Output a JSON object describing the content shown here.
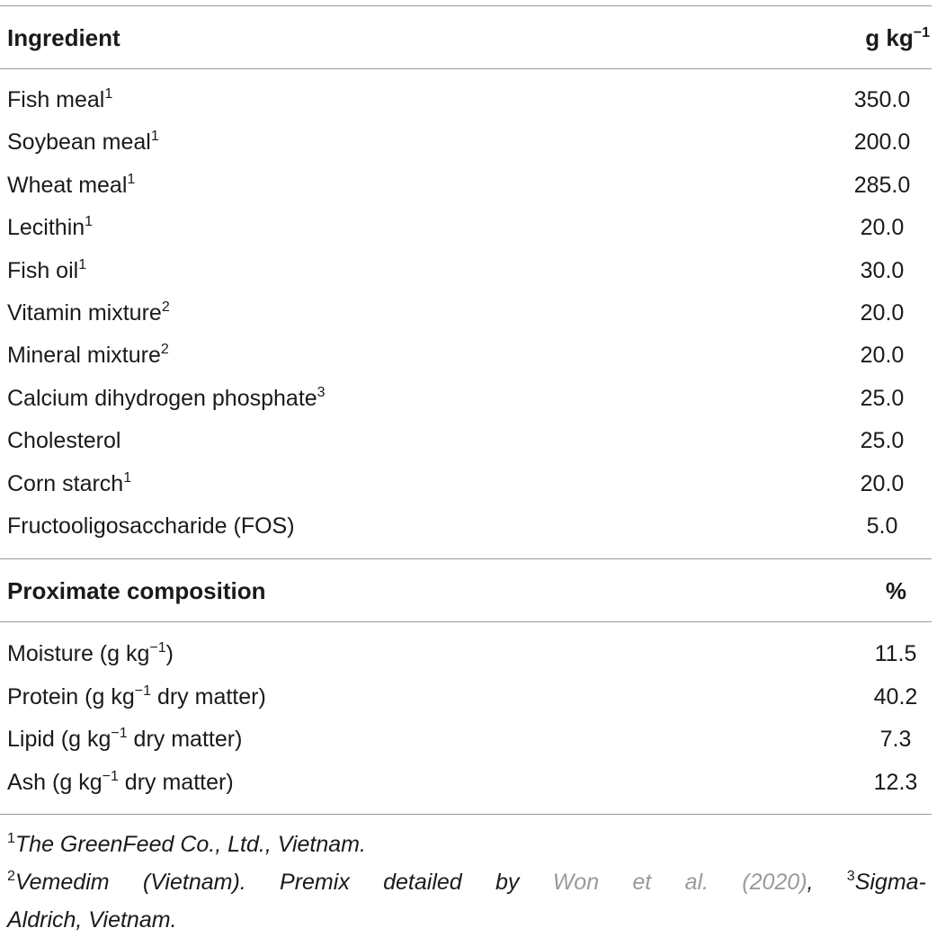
{
  "header1": {
    "label": "Ingredient",
    "unit": "g kg",
    "unit_sup": "−1"
  },
  "ingredients": [
    {
      "name": "Fish meal",
      "sup": "1",
      "value": "350.0"
    },
    {
      "name": "Soybean meal",
      "sup": "1",
      "value": "200.0"
    },
    {
      "name": "Wheat meal",
      "sup": "1",
      "value": "285.0"
    },
    {
      "name": "Lecithin",
      "sup": "1",
      "value": "20.0"
    },
    {
      "name": "Fish oil",
      "sup": "1",
      "value": "30.0"
    },
    {
      "name": "Vitamin mixture",
      "sup": "2",
      "value": "20.0"
    },
    {
      "name": "Mineral mixture",
      "sup": "2",
      "value": "20.0"
    },
    {
      "name": "Calcium dihydrogen phosphate",
      "sup": "3",
      "value": "25.0"
    },
    {
      "name": "Cholesterol",
      "sup": "",
      "value": "25.0"
    },
    {
      "name": "Corn starch",
      "sup": "1",
      "value": "20.0"
    },
    {
      "name": "Fructooligosaccharide (FOS)",
      "sup": "",
      "value": "5.0"
    }
  ],
  "header2": {
    "label": "Proximate composition",
    "unit": "%"
  },
  "proximate": [
    {
      "pre": "Moisture (g kg",
      "sup": "−1",
      "post": ")",
      "value": "11.5"
    },
    {
      "pre": "Protein (g kg",
      "sup": "−1",
      "post": " dry matter)",
      "value": "40.2"
    },
    {
      "pre": "Lipid (g kg",
      "sup": "−1",
      "post": " dry matter)",
      "value": "7.3"
    },
    {
      "pre": "Ash (g kg",
      "sup": "−1",
      "post": " dry matter)",
      "value": "12.3"
    }
  ],
  "footnotes": {
    "n1_sup": "1",
    "n1_text": "The GreenFeed Co., Ltd., Vietnam.",
    "n2_sup": "2",
    "n2_words": [
      "Vemedim",
      "(Vietnam).",
      "Premix",
      "detailed",
      "by"
    ],
    "n2_cite_words": [
      "Won",
      "et",
      "al.",
      "(2020)"
    ],
    "n2_comma": ",",
    "n3_sup": "3",
    "n3_text_a": "Sigma-",
    "n3_text_b": "Aldrich, Vietnam."
  }
}
